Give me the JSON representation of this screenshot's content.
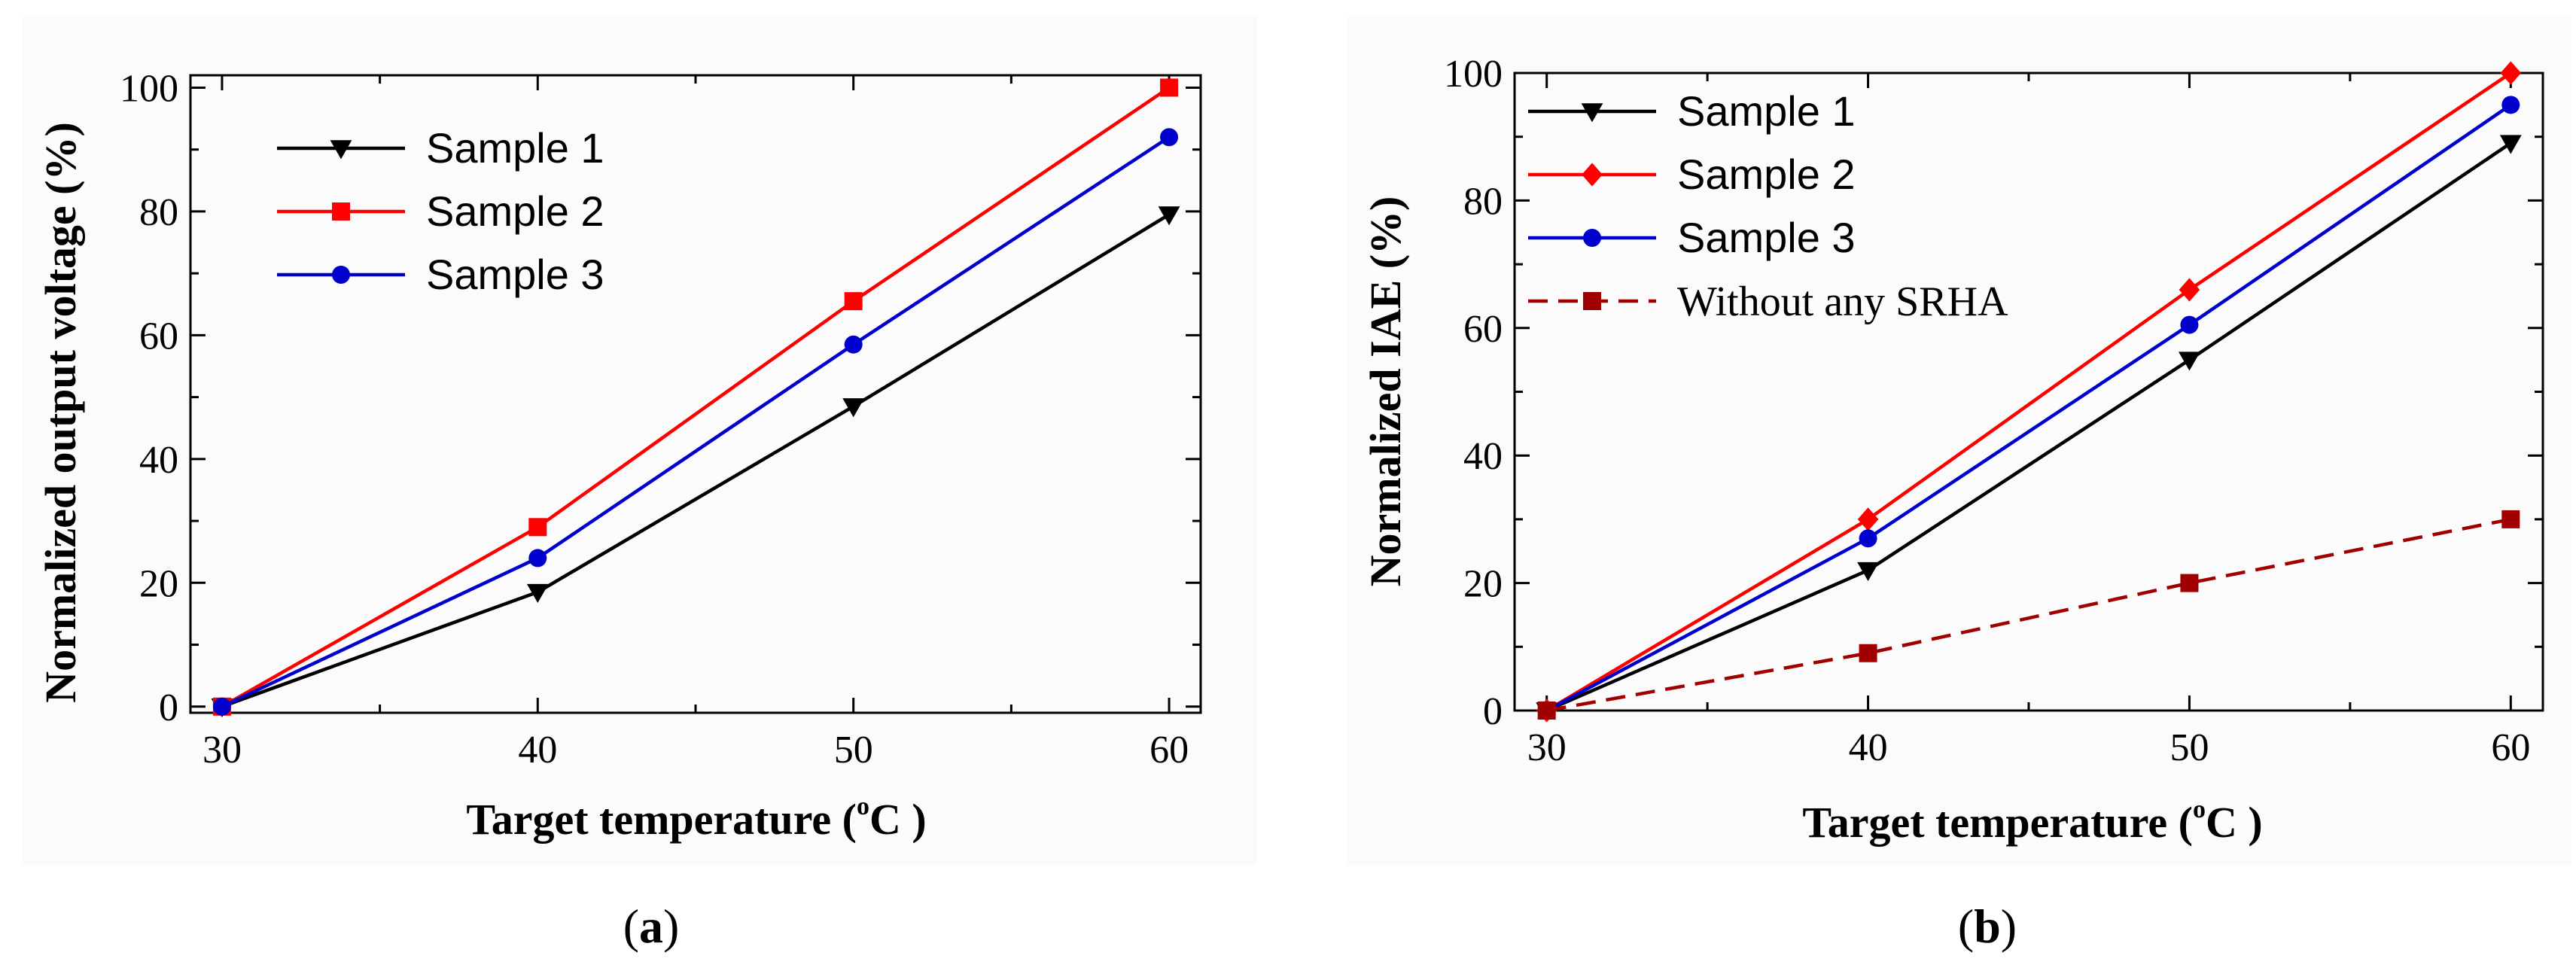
{
  "chart_data": [
    {
      "type": "line",
      "panel_caption": "(a)",
      "caption_open": "(",
      "caption_letter": "a",
      "caption_close": ")",
      "xlabel": "Target temperature (",
      "xlabel_sup": "o",
      "xlabel_unit": "C )",
      "ylabel": "Normalized output voltage (%)",
      "x": [
        30,
        40,
        50,
        60
      ],
      "xlim": [
        29,
        61
      ],
      "ylim": [
        -1,
        102
      ],
      "xticks": [
        30,
        40,
        50,
        60
      ],
      "yticks": [
        0,
        20,
        40,
        60,
        80,
        100
      ],
      "legend_position": "top-left",
      "series": [
        {
          "name": "Sample 1",
          "values": [
            0,
            18.5,
            48.5,
            79.5
          ],
          "color": "#000000",
          "marker": "triangle-down",
          "dash": false
        },
        {
          "name": "Sample 2",
          "values": [
            0,
            29,
            65.5,
            100
          ],
          "color": "#ff0000",
          "marker": "square",
          "dash": false
        },
        {
          "name": "Sample 3",
          "values": [
            0,
            24,
            58.5,
            92
          ],
          "color": "#0000cc",
          "marker": "circle",
          "dash": false
        }
      ]
    },
    {
      "type": "line",
      "panel_caption": "(b)",
      "caption_open": "(",
      "caption_letter": "b",
      "caption_close": ")",
      "xlabel": "Target temperature (",
      "xlabel_sup": "o",
      "xlabel_unit": "C )",
      "ylabel": "Normalized IAE (%)",
      "x": [
        30,
        40,
        50,
        60
      ],
      "xlim": [
        29,
        61
      ],
      "ylim": [
        0,
        100
      ],
      "xticks": [
        30,
        40,
        50,
        60
      ],
      "yticks": [
        0,
        20,
        40,
        60,
        80,
        100
      ],
      "legend_position": "top-left",
      "series": [
        {
          "name": "Sample 1",
          "values": [
            0,
            22,
            55,
            89
          ],
          "color": "#000000",
          "marker": "triangle-down",
          "dash": false
        },
        {
          "name": "Sample 2",
          "values": [
            0,
            30,
            66,
            100
          ],
          "color": "#ff0000",
          "marker": "diamond",
          "dash": false
        },
        {
          "name": "Sample 3",
          "values": [
            0,
            27,
            60.5,
            95
          ],
          "color": "#0000cc",
          "marker": "circle",
          "dash": false
        },
        {
          "name": "Without any SRHA",
          "values": [
            0,
            9,
            20,
            30
          ],
          "color": "#a00000",
          "marker": "square",
          "dash": true
        }
      ]
    }
  ]
}
